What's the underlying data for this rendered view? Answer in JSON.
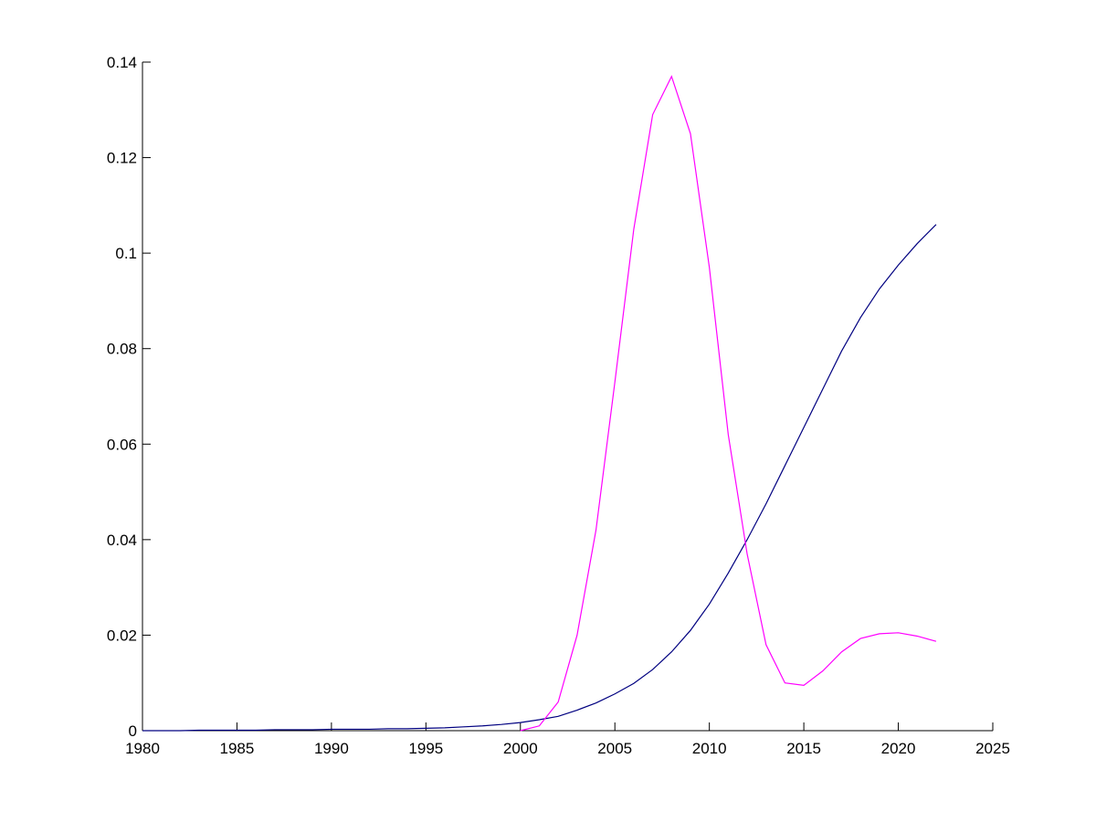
{
  "chart_data": {
    "type": "line",
    "x": [
      1980,
      1981,
      1982,
      1983,
      1984,
      1985,
      1986,
      1987,
      1988,
      1989,
      1990,
      1991,
      1992,
      1993,
      1994,
      1995,
      1996,
      1997,
      1998,
      1999,
      2000,
      2001,
      2002,
      2003,
      2004,
      2005,
      2006,
      2007,
      2008,
      2009,
      2010,
      2011,
      2012,
      2013,
      2014,
      2015,
      2016,
      2017,
      2018,
      2019,
      2020,
      2021,
      2022
    ],
    "series": [
      {
        "color": "#000080",
        "values": [
          0,
          0,
          0,
          0.0001,
          0.0001,
          0.0001,
          0.0001,
          0.0002,
          0.0002,
          0.0002,
          0.0003,
          0.0003,
          0.0003,
          0.0004,
          0.0004,
          0.0005,
          0.0006,
          0.0008,
          0.001,
          0.0013,
          0.0017,
          0.0023,
          0.003,
          0.0043,
          0.0058,
          0.0077,
          0.0099,
          0.0128,
          0.0165,
          0.021,
          0.0265,
          0.033,
          0.04,
          0.0475,
          0.0555,
          0.0635,
          0.0715,
          0.0795,
          0.0865,
          0.0925,
          0.0975,
          0.102,
          0.106
        ]
      },
      {
        "color": "#ff00ff",
        "values": [
          null,
          null,
          null,
          null,
          null,
          null,
          null,
          null,
          null,
          null,
          null,
          null,
          null,
          null,
          null,
          null,
          null,
          null,
          null,
          null,
          0,
          0.001,
          0.006,
          0.02,
          0.042,
          0.073,
          0.105,
          0.129,
          0.137,
          0.125,
          0.097,
          0.062,
          0.037,
          0.018,
          0.01,
          0.0095,
          0.0125,
          0.0165,
          0.0193,
          0.0203,
          0.0205,
          0.0198,
          0.0187
        ]
      }
    ],
    "xlim": [
      1980,
      2025
    ],
    "xticks": [
      1980,
      1985,
      1990,
      1995,
      2000,
      2005,
      2010,
      2015,
      2020,
      2025
    ],
    "ylim": [
      0,
      0.14
    ],
    "yticks": [
      0,
      0.02,
      0.04,
      0.06,
      0.08,
      0.1,
      0.12,
      0.14
    ]
  }
}
